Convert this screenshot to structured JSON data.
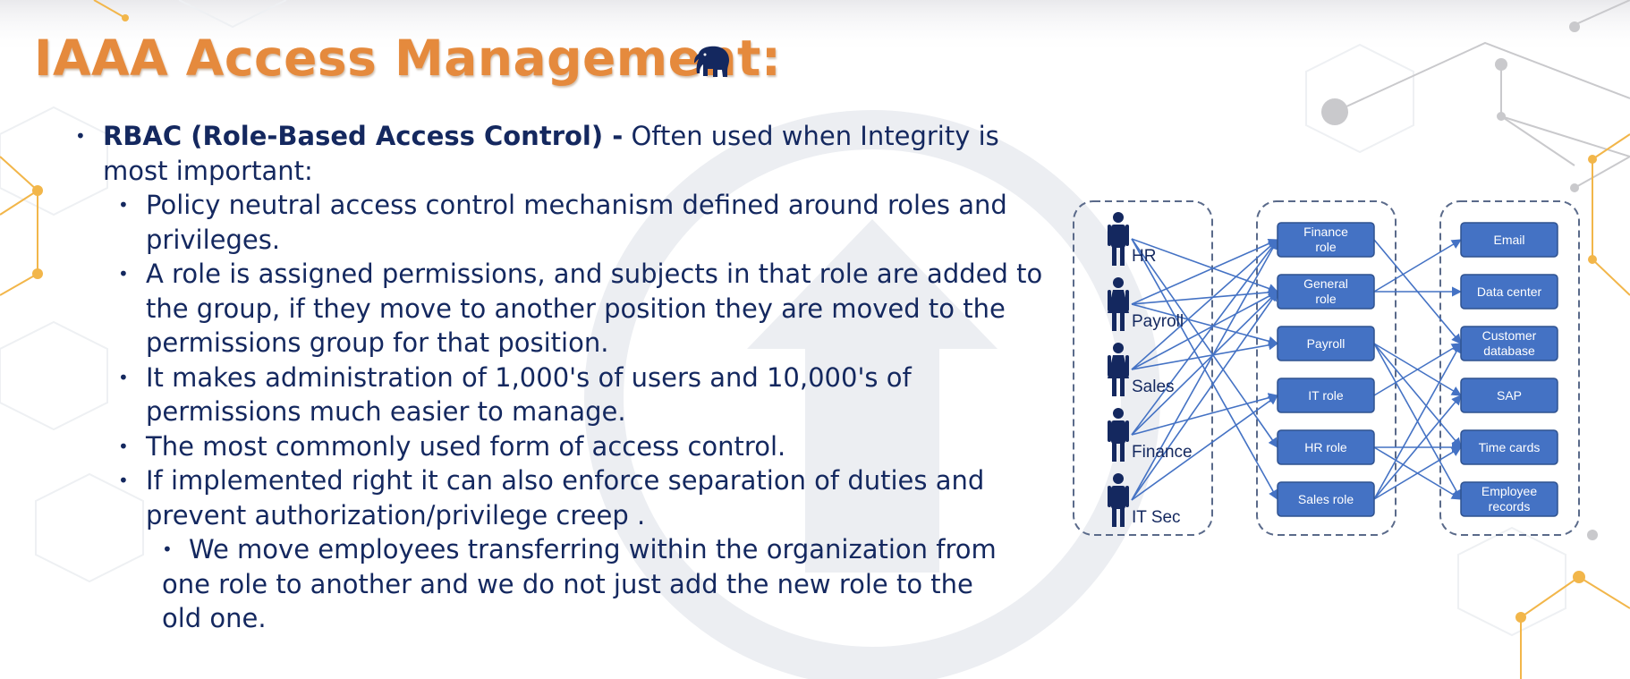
{
  "slide": {
    "title": "IAAA Access Management:",
    "logo_icon": "elephant-icon",
    "accent_title_color": "#e58a3d",
    "text_color": "#14285f",
    "bullets": {
      "main": {
        "bold": "RBAC (Role-Based Access Control) -",
        "text": "Often used when Integrity is most important:"
      },
      "sub": [
        "Policy neutral access control mechanism defined around roles and privileges.",
        "A role is assigned permissions, and subjects in that role are added to the group, if they move to another position they are moved to the permissions group for that position.",
        "It makes administration of 1,000's of users and 10,000's of permissions much easier to manage.",
        "The most commonly used form of access control.",
        "If implemented right it can also enforce separation of duties and prevent authorization/privilege creep ."
      ],
      "subsub": "We move employees transferring within the organization from one role to another and we do not just add the new role to the old one."
    }
  },
  "diagram": {
    "box_color": "#4472c4",
    "users": [
      "HR",
      "Payroll",
      "Sales",
      "Finance",
      "IT Sec"
    ],
    "roles": [
      "Finance role",
      "General role",
      "Payroll",
      "IT role",
      "HR role",
      "Sales role"
    ],
    "resources": [
      "Email",
      "Data center",
      "Customer database",
      "SAP",
      "Time cards",
      "Employee records"
    ]
  }
}
